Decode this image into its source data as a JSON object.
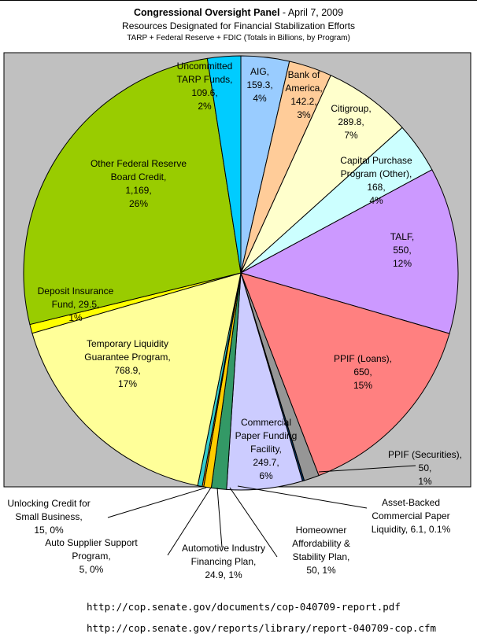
{
  "header": {
    "title_bold": "Congressional Oversight Panel",
    "title_rest": " - April 7, 2009",
    "subtitle": "Resources Designated for Financial Stabilization Efforts",
    "note": "TARP + Federal Reserve + FDIC  (Totals in Billions, by Program)"
  },
  "colors": {
    "plot_background": "#c0c0c0",
    "slice_border": "#000000"
  },
  "chart_data": {
    "type": "pie",
    "unit": "Billions",
    "slices": [
      {
        "label_lines": [
          "AIG,",
          "159.3,",
          "4%"
        ],
        "value": 159.3,
        "percent": "4%",
        "color": "#99ccff"
      },
      {
        "label_lines": [
          "Bank of",
          "America,",
          "142.2,",
          "3%"
        ],
        "value": 142.2,
        "percent": "3%",
        "color": "#ffcc99"
      },
      {
        "label_lines": [
          "Citigroup,",
          "289.8,",
          "7%"
        ],
        "value": 289.8,
        "percent": "7%",
        "color": "#ffffcc"
      },
      {
        "label_lines": [
          "Capital Purchase",
          "Program (Other),",
          "168,",
          "4%"
        ],
        "value": 168,
        "percent": "4%",
        "color": "#ccffff"
      },
      {
        "label_lines": [
          "TALF,",
          "550,",
          "12%"
        ],
        "value": 550,
        "percent": "12%",
        "color": "#cc99ff"
      },
      {
        "label_lines": [
          "PPIF (Loans),",
          "650,",
          "15%"
        ],
        "value": 650,
        "percent": "15%",
        "color": "#ff8080"
      },
      {
        "label_lines": [
          "PPIF (Securities),",
          "50,",
          "1%"
        ],
        "value": 50,
        "percent": "1%",
        "color": "#969696"
      },
      {
        "label_lines": [
          "Asset-Backed",
          "Commercial Paper",
          "Liquidity, 6.1, 0.1%"
        ],
        "value": 6.1,
        "percent": "0.1%",
        "color": "#003366"
      },
      {
        "label_lines": [
          "Commercial",
          "Paper Funding",
          "Facility,",
          "249.7,",
          "6%"
        ],
        "value": 249.7,
        "percent": "6%",
        "color": "#ccccff"
      },
      {
        "label_lines": [
          "Homeowner",
          "Affordability &",
          "Stability Plan,",
          "50, 1%"
        ],
        "value": 50,
        "percent": "1%",
        "color": "#339966"
      },
      {
        "label_lines": [
          "Automotive Industry",
          "Financing Plan,",
          "24.9, 1%"
        ],
        "value": 24.9,
        "percent": "1%",
        "color": "#ffcc00"
      },
      {
        "label_lines": [
          "Auto Supplier Support",
          "Program,",
          "5, 0%"
        ],
        "value": 5,
        "percent": "0%",
        "color": "#ff9900"
      },
      {
        "label_lines": [
          "Unlocking Credit for",
          "Small Business,",
          "15, 0%"
        ],
        "value": 15,
        "percent": "0%",
        "color": "#33cccc"
      },
      {
        "label_lines": [
          "Temporary Liquidity",
          "Guarantee Program,",
          "768.9,",
          "17%"
        ],
        "value": 768.9,
        "percent": "17%",
        "color": "#ffff99"
      },
      {
        "label_lines": [
          "Deposit Insurance",
          "Fund, 29.5,",
          "1%"
        ],
        "value": 29.5,
        "percent": "1%",
        "color": "#ffff00"
      },
      {
        "label_lines": [
          "Other Federal Reserve",
          "Board Credit,",
          "1,169,",
          "26%"
        ],
        "value": 1169,
        "percent": "26%",
        "color": "#99cc00"
      },
      {
        "label_lines": [
          "Uncommitted",
          "TARP Funds,",
          "109.6,",
          "2%"
        ],
        "value": 109.6,
        "percent": "2%",
        "color": "#00ccff"
      }
    ]
  },
  "footer": {
    "url1": "http://cop.senate.gov/documents/cop-040709-report.pdf",
    "url2": "http://cop.senate.gov/reports/library/report-040709-cop.cfm"
  }
}
